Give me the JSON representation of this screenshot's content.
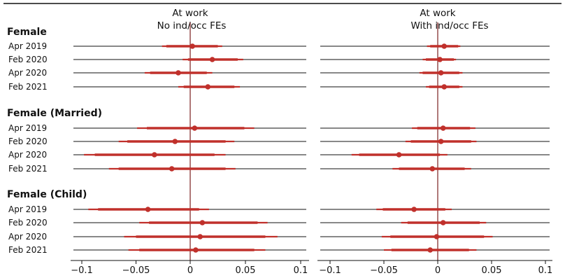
{
  "chart_data": {
    "type": "coefficient-plot",
    "groups": [
      {
        "title": "Female",
        "rows": [
          "Apr 2019",
          "Feb 2020",
          "Apr 2020",
          "Feb 2021"
        ]
      },
      {
        "title": "Female (Married)",
        "rows": [
          "Apr 2019",
          "Feb 2020",
          "Apr 2020",
          "Feb 2021"
        ]
      },
      {
        "title": "Female (Child)",
        "rows": [
          "Apr 2019",
          "Feb 2020",
          "Apr 2020",
          "Feb 2021"
        ]
      }
    ],
    "xlim": [
      -0.1,
      0.1
    ],
    "ticks": [
      -0.1,
      -0.05,
      0,
      0.05,
      0.1
    ],
    "tick_labels": [
      "−0.1",
      "−0.05",
      "0",
      "0.05",
      "0.1"
    ],
    "grid": "horizontal row lines",
    "colors": {
      "estimate": "#c0302b",
      "zero_line": "#7a1f1f",
      "row_line": "#111111"
    },
    "panels": [
      {
        "title": [
          "At work",
          "No ind/occ FEs"
        ],
        "estimates": [
          [
            {
              "est": 0.002,
              "lo": -0.026,
              "hi": 0.029,
              "lo90": -0.022,
              "hi90": 0.025
            },
            {
              "est": 0.02,
              "lo": -0.007,
              "hi": 0.048,
              "lo90": -0.002,
              "hi90": 0.043
            },
            {
              "est": -0.011,
              "lo": -0.042,
              "hi": 0.02,
              "lo90": -0.037,
              "hi90": 0.015
            },
            {
              "est": 0.016,
              "lo": -0.011,
              "hi": 0.045,
              "lo90": -0.006,
              "hi90": 0.04
            }
          ],
          [
            {
              "est": 0.004,
              "lo": -0.049,
              "hi": 0.058,
              "lo90": -0.04,
              "hi90": 0.049
            },
            {
              "est": -0.014,
              "lo": -0.066,
              "hi": 0.04,
              "lo90": -0.058,
              "hi90": 0.032
            },
            {
              "est": -0.033,
              "lo": -0.098,
              "hi": 0.032,
              "lo90": -0.088,
              "hi90": 0.022
            },
            {
              "est": -0.017,
              "lo": -0.075,
              "hi": 0.041,
              "lo90": -0.066,
              "hi90": 0.032
            }
          ],
          [
            {
              "est": -0.039,
              "lo": -0.094,
              "hi": 0.017,
              "lo90": -0.085,
              "hi90": 0.008
            },
            {
              "est": 0.011,
              "lo": -0.047,
              "hi": 0.07,
              "lo90": -0.038,
              "hi90": 0.061
            },
            {
              "est": 0.009,
              "lo": -0.061,
              "hi": 0.079,
              "lo90": -0.05,
              "hi90": 0.068
            },
            {
              "est": 0.005,
              "lo": -0.057,
              "hi": 0.068,
              "lo90": -0.047,
              "hi90": 0.058
            }
          ]
        ]
      },
      {
        "title": [
          "At work",
          "With ind/occ FEs"
        ],
        "estimates": [
          [
            {
              "est": 0.006,
              "lo": -0.01,
              "hi": 0.021,
              "lo90": -0.007,
              "hi90": 0.019
            },
            {
              "est": 0.002,
              "lo": -0.014,
              "hi": 0.017,
              "lo90": -0.011,
              "hi90": 0.015
            },
            {
              "est": 0.003,
              "lo": -0.017,
              "hi": 0.023,
              "lo90": -0.014,
              "hi90": 0.02
            },
            {
              "est": 0.006,
              "lo": -0.011,
              "hi": 0.023,
              "lo90": -0.008,
              "hi90": 0.02
            }
          ],
          [
            {
              "est": 0.005,
              "lo": -0.024,
              "hi": 0.035,
              "lo90": -0.019,
              "hi90": 0.03
            },
            {
              "est": 0.003,
              "lo": -0.03,
              "hi": 0.036,
              "lo90": -0.025,
              "hi90": 0.031
            },
            {
              "est": -0.036,
              "lo": -0.08,
              "hi": 0.009,
              "lo90": -0.073,
              "hi90": 0.002
            },
            {
              "est": -0.005,
              "lo": -0.042,
              "hi": 0.031,
              "lo90": -0.036,
              "hi90": 0.025
            }
          ],
          [
            {
              "est": -0.022,
              "lo": -0.057,
              "hi": 0.013,
              "lo90": -0.051,
              "hi90": 0.007
            },
            {
              "est": 0.005,
              "lo": -0.034,
              "hi": 0.045,
              "lo90": -0.028,
              "hi90": 0.039
            },
            {
              "est": -0.001,
              "lo": -0.052,
              "hi": 0.051,
              "lo90": -0.044,
              "hi90": 0.043
            },
            {
              "est": -0.007,
              "lo": -0.05,
              "hi": 0.036,
              "lo90": -0.043,
              "hi90": 0.029
            }
          ]
        ]
      }
    ]
  }
}
